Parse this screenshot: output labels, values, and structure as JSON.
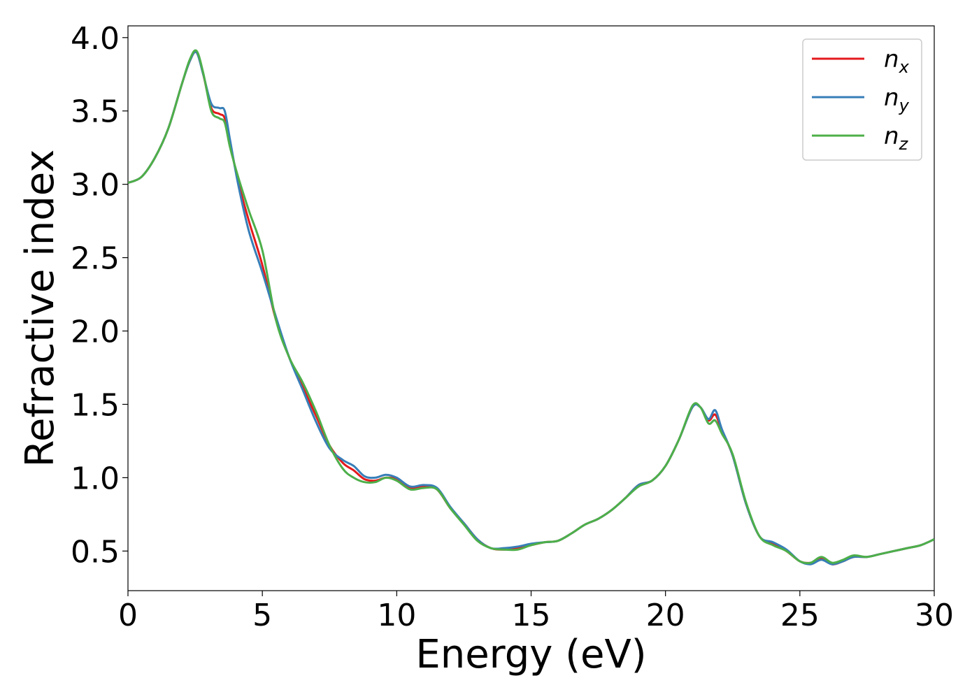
{
  "chart_data": {
    "type": "line",
    "xlabel": "Energy (eV)",
    "ylabel": "Refractive index",
    "xlim": [
      0,
      30
    ],
    "ylim": [
      0.23,
      4.08
    ],
    "xticks": [
      0,
      5,
      10,
      15,
      20,
      25,
      30
    ],
    "xtick_labels": [
      "0",
      "5",
      "10",
      "15",
      "20",
      "25",
      "30"
    ],
    "yticks": [
      0.5,
      1.0,
      1.5,
      2.0,
      2.5,
      3.0,
      3.5,
      4.0
    ],
    "ytick_labels": [
      "0.5",
      "1.0",
      "1.5",
      "2.0",
      "2.5",
      "3.0",
      "3.5",
      "4.0"
    ],
    "grid": false,
    "legend_position": "top-right",
    "series": [
      {
        "name": "n_x",
        "legend_base": "n",
        "legend_sub": "x",
        "color": "#e41a1c",
        "x": [
          0,
          0.5,
          1,
          1.5,
          2,
          2.3,
          2.55,
          2.8,
          3.1,
          3.4,
          3.6,
          3.8,
          4.1,
          4.5,
          5,
          5.5,
          6,
          6.5,
          7,
          7.5,
          8,
          8.4,
          8.8,
          9.2,
          9.6,
          10,
          10.5,
          11,
          11.5,
          12,
          12.5,
          13,
          13.5,
          14,
          14.5,
          15,
          15.5,
          16,
          16.5,
          17,
          17.5,
          18,
          18.5,
          19,
          19.5,
          20,
          20.5,
          21,
          21.3,
          21.6,
          21.85,
          22.1,
          22.5,
          23,
          23.5,
          24,
          24.5,
          25,
          25.4,
          25.8,
          26.2,
          26.6,
          27,
          27.5,
          28,
          28.5,
          29,
          29.5,
          30
        ],
        "y": [
          3.01,
          3.05,
          3.18,
          3.38,
          3.68,
          3.84,
          3.9,
          3.75,
          3.52,
          3.48,
          3.45,
          3.28,
          3.02,
          2.75,
          2.45,
          2.08,
          1.82,
          1.62,
          1.42,
          1.22,
          1.1,
          1.05,
          0.99,
          0.98,
          1.0,
          0.99,
          0.93,
          0.94,
          0.92,
          0.79,
          0.69,
          0.58,
          0.52,
          0.51,
          0.52,
          0.54,
          0.56,
          0.57,
          0.62,
          0.68,
          0.72,
          0.78,
          0.86,
          0.95,
          0.98,
          1.08,
          1.26,
          1.48,
          1.48,
          1.39,
          1.43,
          1.32,
          1.15,
          0.82,
          0.6,
          0.55,
          0.5,
          0.43,
          0.42,
          0.45,
          0.41,
          0.43,
          0.46,
          0.46,
          0.48,
          0.5,
          0.52,
          0.54,
          0.58
        ]
      },
      {
        "name": "n_y",
        "legend_base": "n",
        "legend_sub": "y",
        "color": "#377eb8",
        "x": [
          0,
          0.5,
          1,
          1.5,
          2,
          2.3,
          2.55,
          2.8,
          3.1,
          3.4,
          3.6,
          3.8,
          4.1,
          4.5,
          5,
          5.5,
          6,
          6.5,
          7,
          7.5,
          8,
          8.4,
          8.8,
          9.2,
          9.6,
          10,
          10.5,
          11,
          11.5,
          12,
          12.5,
          13,
          13.5,
          14,
          14.5,
          15,
          15.5,
          16,
          16.5,
          17,
          17.5,
          18,
          18.5,
          19,
          19.5,
          20,
          20.5,
          21,
          21.3,
          21.6,
          21.85,
          22.1,
          22.5,
          23,
          23.5,
          24,
          24.5,
          25,
          25.4,
          25.8,
          26.2,
          26.6,
          27,
          27.5,
          28,
          28.5,
          29,
          29.5,
          30
        ],
        "y": [
          3.01,
          3.05,
          3.18,
          3.38,
          3.68,
          3.84,
          3.9,
          3.75,
          3.55,
          3.52,
          3.5,
          3.3,
          3.0,
          2.68,
          2.4,
          2.1,
          1.82,
          1.6,
          1.38,
          1.2,
          1.12,
          1.08,
          1.01,
          1.0,
          1.02,
          1.0,
          0.94,
          0.95,
          0.93,
          0.8,
          0.69,
          0.58,
          0.52,
          0.52,
          0.53,
          0.55,
          0.56,
          0.57,
          0.62,
          0.68,
          0.72,
          0.78,
          0.86,
          0.95,
          0.98,
          1.08,
          1.26,
          1.48,
          1.48,
          1.4,
          1.46,
          1.33,
          1.15,
          0.82,
          0.6,
          0.56,
          0.51,
          0.43,
          0.41,
          0.44,
          0.41,
          0.43,
          0.46,
          0.46,
          0.48,
          0.5,
          0.52,
          0.54,
          0.58
        ]
      },
      {
        "name": "n_z",
        "legend_base": "n",
        "legend_sub": "z",
        "color": "#4daf4a",
        "x": [
          0,
          0.5,
          1,
          1.5,
          2,
          2.3,
          2.55,
          2.8,
          3.1,
          3.4,
          3.6,
          3.8,
          4.1,
          4.5,
          5,
          5.5,
          6,
          6.5,
          7,
          7.5,
          8,
          8.4,
          8.8,
          9.2,
          9.6,
          10,
          10.5,
          11,
          11.5,
          12,
          12.5,
          13,
          13.5,
          14,
          14.5,
          15,
          15.5,
          16,
          16.5,
          17,
          17.5,
          18,
          18.5,
          19,
          19.5,
          20,
          20.5,
          21,
          21.3,
          21.6,
          21.85,
          22.1,
          22.5,
          23,
          23.5,
          24,
          24.5,
          25,
          25.4,
          25.8,
          26.2,
          26.6,
          27,
          27.5,
          28,
          28.5,
          29,
          29.5,
          30
        ],
        "y": [
          3.01,
          3.05,
          3.18,
          3.38,
          3.68,
          3.85,
          3.91,
          3.76,
          3.5,
          3.45,
          3.42,
          3.25,
          3.05,
          2.82,
          2.55,
          2.08,
          1.82,
          1.65,
          1.45,
          1.22,
          1.06,
          1.0,
          0.97,
          0.97,
          1.0,
          0.98,
          0.92,
          0.93,
          0.92,
          0.79,
          0.68,
          0.57,
          0.52,
          0.51,
          0.51,
          0.54,
          0.56,
          0.57,
          0.62,
          0.68,
          0.72,
          0.78,
          0.86,
          0.94,
          0.98,
          1.08,
          1.26,
          1.49,
          1.48,
          1.37,
          1.39,
          1.3,
          1.16,
          0.83,
          0.6,
          0.54,
          0.5,
          0.43,
          0.42,
          0.46,
          0.42,
          0.44,
          0.47,
          0.46,
          0.48,
          0.5,
          0.52,
          0.54,
          0.58
        ]
      }
    ]
  }
}
